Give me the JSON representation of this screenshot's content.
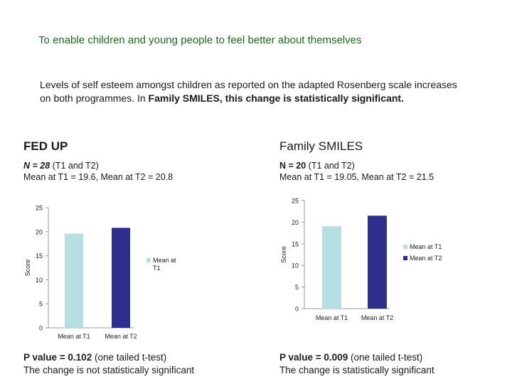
{
  "title": "To enable children and young people to feel better about themselves",
  "intro": {
    "part1": "Levels of self esteem amongst children  as reported on the adapted Rosenberg scale  increases on both programmes.  In ",
    "part2": "Family SMILES, this change is statistically significant."
  },
  "fed_up": {
    "heading": "FED UP",
    "n_label": "N = 28",
    "n_rest": " (T1 and T2)",
    "means": "Mean at T1 = 19.6, Mean at T2 = 20.8",
    "p_label": "P value = 0.102",
    "p_rest": " (one tailed t-test)",
    "conclusion": "The change is not statistically significant"
  },
  "family_smiles": {
    "heading": "Family SMILES",
    "n_label": "N = 20",
    "n_rest": " (T1 and T2)",
    "means": "Mean at T1 = 19.05, Mean at T2 = 21.5",
    "p_label": "P value = 0.009",
    "p_rest": " (one tailed t-test)",
    "conclusion": "The change is statistically significant"
  },
  "colors": {
    "t1": "#b7dfe3",
    "t2": "#2e2e8c",
    "title_green": "#1e6b1e"
  },
  "chart_data": [
    {
      "type": "bar",
      "categories": [
        "Mean at T1",
        "Mean at T2"
      ],
      "values": [
        19.6,
        20.8
      ],
      "ylabel": "Score",
      "ylim": [
        0,
        25
      ],
      "yticks": [
        0,
        5,
        10,
        15,
        20,
        25
      ],
      "legend": [
        "Mean at T1"
      ],
      "legend_position": "right",
      "grid": false
    },
    {
      "type": "bar",
      "categories": [
        "Mean at T1",
        "Mean at T2"
      ],
      "values": [
        19.05,
        21.5
      ],
      "ylabel": "Score",
      "ylim": [
        0,
        25
      ],
      "yticks": [
        0,
        5,
        10,
        15,
        20,
        25
      ],
      "legend": [
        "Mean at T1",
        "Mean at T2"
      ],
      "legend_position": "right",
      "grid": false
    }
  ]
}
